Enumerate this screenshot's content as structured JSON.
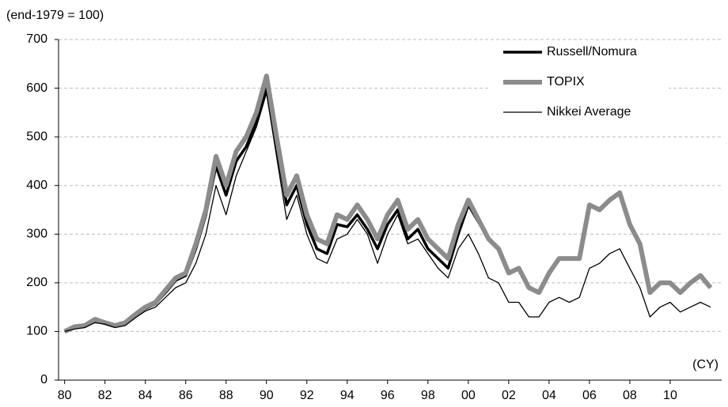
{
  "chart_data": {
    "type": "line",
    "y_label": "(end-1979 = 100)",
    "x_label": "(CY)",
    "x": [
      1980,
      1980.5,
      1981,
      1981.5,
      1982,
      1982.5,
      1983,
      1983.5,
      1984,
      1984.5,
      1985,
      1985.5,
      1986,
      1986.5,
      1987,
      1987.5,
      1988,
      1988.5,
      1989,
      1989.5,
      1990,
      1990.5,
      1991,
      1991.5,
      1992,
      1992.5,
      1993,
      1993.5,
      1994,
      1994.5,
      1995,
      1995.5,
      1996,
      1996.5,
      1997,
      1997.5,
      1998,
      1998.5,
      1999,
      1999.5,
      2000,
      2000.5,
      2001,
      2001.5,
      2002,
      2002.5,
      2003,
      2003.5,
      2004,
      2004.5,
      2005,
      2005.5,
      2006,
      2006.5,
      2007,
      2007.5,
      2008,
      2008.5,
      2009,
      2009.5,
      2010,
      2010.5,
      2011,
      2011.5,
      2012
    ],
    "series": [
      {
        "name": "Russell/Nomura",
        "color": "#000000",
        "width": 3.5,
        "values": [
          100,
          108,
          110,
          122,
          116,
          110,
          116,
          132,
          147,
          157,
          180,
          205,
          215,
          270,
          340,
          440,
          380,
          450,
          480,
          530,
          600,
          480,
          360,
          400,
          320,
          270,
          260,
          320,
          315,
          340,
          310,
          270,
          320,
          350,
          290,
          310,
          270,
          250,
          230,
          300,
          360,
          325,
          290,
          270,
          220,
          230,
          190,
          180,
          220,
          250,
          250,
          250,
          360,
          350,
          370,
          385,
          320,
          280,
          180,
          200,
          200,
          180,
          200,
          215,
          190
        ]
      },
      {
        "name": "TOPIX",
        "color": "#8c8c8c",
        "width": 6,
        "values": [
          100,
          110,
          112,
          125,
          118,
          112,
          118,
          135,
          150,
          160,
          185,
          210,
          220,
          280,
          350,
          460,
          400,
          470,
          500,
          550,
          625,
          500,
          380,
          420,
          340,
          290,
          280,
          340,
          330,
          360,
          330,
          290,
          340,
          370,
          310,
          330,
          290,
          270,
          250,
          320,
          370,
          330,
          290,
          270,
          220,
          230,
          190,
          180,
          220,
          250,
          250,
          250,
          360,
          350,
          370,
          385,
          320,
          280,
          180,
          200,
          200,
          180,
          200,
          215,
          190
        ]
      },
      {
        "name": "Nikkei Average",
        "color": "#000000",
        "width": 1.3,
        "values": [
          100,
          105,
          108,
          118,
          115,
          108,
          112,
          128,
          142,
          150,
          170,
          190,
          200,
          240,
          300,
          400,
          340,
          420,
          470,
          520,
          590,
          460,
          330,
          380,
          300,
          250,
          240,
          290,
          300,
          330,
          300,
          240,
          300,
          340,
          280,
          290,
          260,
          230,
          210,
          270,
          300,
          260,
          210,
          200,
          160,
          160,
          130,
          130,
          160,
          170,
          160,
          170,
          230,
          240,
          260,
          270,
          230,
          190,
          130,
          150,
          160,
          140,
          150,
          160,
          150
        ]
      }
    ],
    "xlim": [
      1979.7,
      2012.55
    ],
    "xticks": [
      {
        "value": 1980,
        "label": "80"
      },
      {
        "value": 1982,
        "label": "82"
      },
      {
        "value": 1984,
        "label": "84"
      },
      {
        "value": 1986,
        "label": "86"
      },
      {
        "value": 1988,
        "label": "88"
      },
      {
        "value": 1990,
        "label": "90"
      },
      {
        "value": 1992,
        "label": "92"
      },
      {
        "value": 1994,
        "label": "94"
      },
      {
        "value": 1996,
        "label": "96"
      },
      {
        "value": 1998,
        "label": "98"
      },
      {
        "value": 2000,
        "label": "00"
      },
      {
        "value": 2002,
        "label": "02"
      },
      {
        "value": 2004,
        "label": "04"
      },
      {
        "value": 2006,
        "label": "06"
      },
      {
        "value": 2008,
        "label": "08"
      },
      {
        "value": 2010,
        "label": "10"
      }
    ],
    "ylim": [
      0,
      700
    ],
    "yticks": [
      0,
      100,
      200,
      300,
      400,
      500,
      600,
      700
    ],
    "grid": true,
    "legend": "upper-right"
  }
}
